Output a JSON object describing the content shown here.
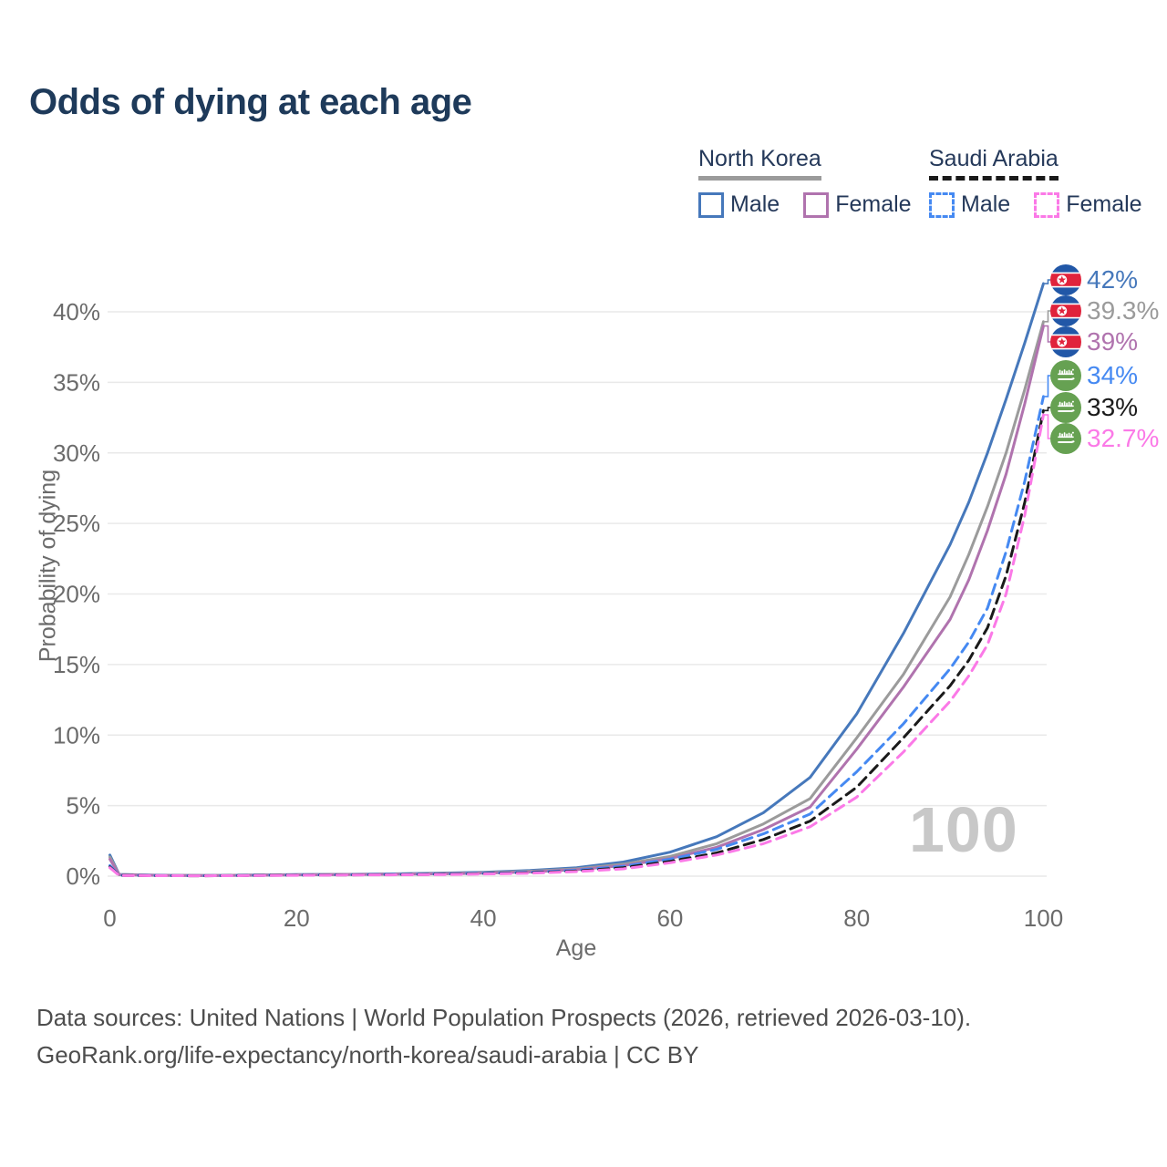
{
  "title": "Odds of dying at each age",
  "legend": {
    "groups": [
      {
        "name": "North Korea",
        "line_style": "solid",
        "underline_color": "#9b9b9b",
        "items": [
          {
            "label": "Male",
            "color": "#4678bb"
          },
          {
            "label": "Female",
            "color": "#b073ae"
          }
        ]
      },
      {
        "name": "Saudi Arabia",
        "line_style": "dashed",
        "underline_color": "#1a1a1a",
        "items": [
          {
            "label": "Male",
            "color": "#4589f2"
          },
          {
            "label": "Female",
            "color": "#fb79e7"
          }
        ]
      }
    ]
  },
  "watermark": "100",
  "footer": {
    "line1": "Data sources: United Nations | World Population Prospects (2026, retrieved 2026-03-10).",
    "line2": "GeoRank.org/life-expectancy/north-korea/saudi-arabia | CC BY"
  },
  "chart_data": {
    "type": "line",
    "title": "Odds of dying at each age",
    "xlabel": "Age",
    "ylabel": "Probability of dying",
    "xlim": [
      0,
      100
    ],
    "ylim_percent": [
      0,
      43
    ],
    "x_ticks": [
      0,
      20,
      40,
      60,
      80,
      100
    ],
    "y_ticks": [
      "0%",
      "5%",
      "10%",
      "15%",
      "20%",
      "25%",
      "30%",
      "35%",
      "40%"
    ],
    "grid": "horizontal",
    "legend_position": "top-right",
    "series": [
      {
        "name": "North Korea Male",
        "country": "north-korea",
        "sex": "male",
        "color": "#4678bb",
        "dashed": false,
        "end_label": "42%",
        "end_value": 42,
        "points": [
          [
            0,
            1.5
          ],
          [
            1,
            0.12
          ],
          [
            5,
            0.07
          ],
          [
            10,
            0.05
          ],
          [
            15,
            0.08
          ],
          [
            20,
            0.11
          ],
          [
            25,
            0.13
          ],
          [
            30,
            0.16
          ],
          [
            35,
            0.21
          ],
          [
            40,
            0.28
          ],
          [
            45,
            0.4
          ],
          [
            50,
            0.6
          ],
          [
            55,
            1.0
          ],
          [
            60,
            1.7
          ],
          [
            65,
            2.8
          ],
          [
            70,
            4.5
          ],
          [
            75,
            7.0
          ],
          [
            80,
            11.5
          ],
          [
            85,
            17.2
          ],
          [
            90,
            23.5
          ],
          [
            92,
            26.5
          ],
          [
            94,
            30
          ],
          [
            96,
            33.8
          ],
          [
            98,
            37.8
          ],
          [
            100,
            42
          ]
        ]
      },
      {
        "name": "North Korea Total",
        "country": "north-korea",
        "sex": "both",
        "color": "#9b9b9b",
        "dashed": false,
        "end_label": "39.3%",
        "end_value": 39.3,
        "points": [
          [
            0,
            1.35
          ],
          [
            1,
            0.11
          ],
          [
            5,
            0.06
          ],
          [
            10,
            0.045
          ],
          [
            15,
            0.07
          ],
          [
            20,
            0.1
          ],
          [
            25,
            0.12
          ],
          [
            30,
            0.14
          ],
          [
            35,
            0.18
          ],
          [
            40,
            0.24
          ],
          [
            45,
            0.35
          ],
          [
            50,
            0.52
          ],
          [
            55,
            0.85
          ],
          [
            60,
            1.4
          ],
          [
            65,
            2.3
          ],
          [
            70,
            3.7
          ],
          [
            75,
            5.5
          ],
          [
            80,
            9.8
          ],
          [
            85,
            14.3
          ],
          [
            90,
            19.8
          ],
          [
            92,
            22.8
          ],
          [
            94,
            26.2
          ],
          [
            96,
            30
          ],
          [
            98,
            34.5
          ],
          [
            100,
            39.3
          ]
        ]
      },
      {
        "name": "North Korea Female",
        "country": "north-korea",
        "sex": "female",
        "color": "#b073ae",
        "dashed": false,
        "end_label": "39%",
        "end_value": 39,
        "points": [
          [
            0,
            1.2
          ],
          [
            1,
            0.1
          ],
          [
            5,
            0.055
          ],
          [
            10,
            0.04
          ],
          [
            15,
            0.06
          ],
          [
            20,
            0.09
          ],
          [
            25,
            0.11
          ],
          [
            30,
            0.13
          ],
          [
            35,
            0.16
          ],
          [
            40,
            0.21
          ],
          [
            45,
            0.3
          ],
          [
            50,
            0.46
          ],
          [
            55,
            0.75
          ],
          [
            60,
            1.25
          ],
          [
            65,
            2.05
          ],
          [
            70,
            3.3
          ],
          [
            75,
            4.9
          ],
          [
            80,
            9.0
          ],
          [
            85,
            13.4
          ],
          [
            90,
            18.2
          ],
          [
            92,
            21
          ],
          [
            94,
            24.5
          ],
          [
            96,
            28.5
          ],
          [
            98,
            33.5
          ],
          [
            100,
            39
          ]
        ]
      },
      {
        "name": "Saudi Arabia Male",
        "country": "saudi-arabia",
        "sex": "male",
        "color": "#4589f2",
        "dashed": true,
        "end_label": "34%",
        "end_value": 34,
        "points": [
          [
            0,
            0.75
          ],
          [
            1,
            0.06
          ],
          [
            5,
            0.04
          ],
          [
            10,
            0.03
          ],
          [
            15,
            0.05
          ],
          [
            20,
            0.08
          ],
          [
            25,
            0.1
          ],
          [
            30,
            0.12
          ],
          [
            35,
            0.15
          ],
          [
            40,
            0.2
          ],
          [
            45,
            0.28
          ],
          [
            50,
            0.42
          ],
          [
            55,
            0.7
          ],
          [
            60,
            1.2
          ],
          [
            65,
            1.9
          ],
          [
            70,
            3.0
          ],
          [
            75,
            4.4
          ],
          [
            80,
            7.4
          ],
          [
            85,
            10.8
          ],
          [
            90,
            14.7
          ],
          [
            92,
            16.6
          ],
          [
            94,
            19
          ],
          [
            96,
            23
          ],
          [
            98,
            28
          ],
          [
            100,
            34
          ]
        ]
      },
      {
        "name": "Saudi Arabia Total",
        "country": "saudi-arabia",
        "sex": "both",
        "color": "#1a1a1a",
        "dashed": true,
        "end_label": "33%",
        "end_value": 33,
        "points": [
          [
            0,
            0.65
          ],
          [
            1,
            0.05
          ],
          [
            5,
            0.035
          ],
          [
            10,
            0.028
          ],
          [
            15,
            0.045
          ],
          [
            20,
            0.07
          ],
          [
            25,
            0.09
          ],
          [
            30,
            0.1
          ],
          [
            35,
            0.13
          ],
          [
            40,
            0.17
          ],
          [
            45,
            0.24
          ],
          [
            50,
            0.36
          ],
          [
            55,
            0.6
          ],
          [
            60,
            1.05
          ],
          [
            65,
            1.65
          ],
          [
            70,
            2.6
          ],
          [
            75,
            3.9
          ],
          [
            80,
            6.3
          ],
          [
            85,
            9.8
          ],
          [
            90,
            13.5
          ],
          [
            92,
            15.3
          ],
          [
            94,
            17.6
          ],
          [
            96,
            21.3
          ],
          [
            98,
            26.5
          ],
          [
            100,
            33
          ]
        ]
      },
      {
        "name": "Saudi Arabia Female",
        "country": "saudi-arabia",
        "sex": "female",
        "color": "#fb79e7",
        "dashed": true,
        "end_label": "32.7%",
        "end_value": 32.7,
        "points": [
          [
            0,
            0.6
          ],
          [
            1,
            0.045
          ],
          [
            5,
            0.03
          ],
          [
            10,
            0.025
          ],
          [
            15,
            0.04
          ],
          [
            20,
            0.06
          ],
          [
            25,
            0.08
          ],
          [
            30,
            0.09
          ],
          [
            35,
            0.11
          ],
          [
            40,
            0.15
          ],
          [
            45,
            0.21
          ],
          [
            50,
            0.32
          ],
          [
            55,
            0.52
          ],
          [
            60,
            0.95
          ],
          [
            65,
            1.5
          ],
          [
            70,
            2.3
          ],
          [
            75,
            3.5
          ],
          [
            80,
            5.6
          ],
          [
            85,
            8.8
          ],
          [
            90,
            12.4
          ],
          [
            92,
            14.2
          ],
          [
            94,
            16.4
          ],
          [
            96,
            20
          ],
          [
            98,
            25.6
          ],
          [
            100,
            32.7
          ]
        ]
      }
    ]
  }
}
